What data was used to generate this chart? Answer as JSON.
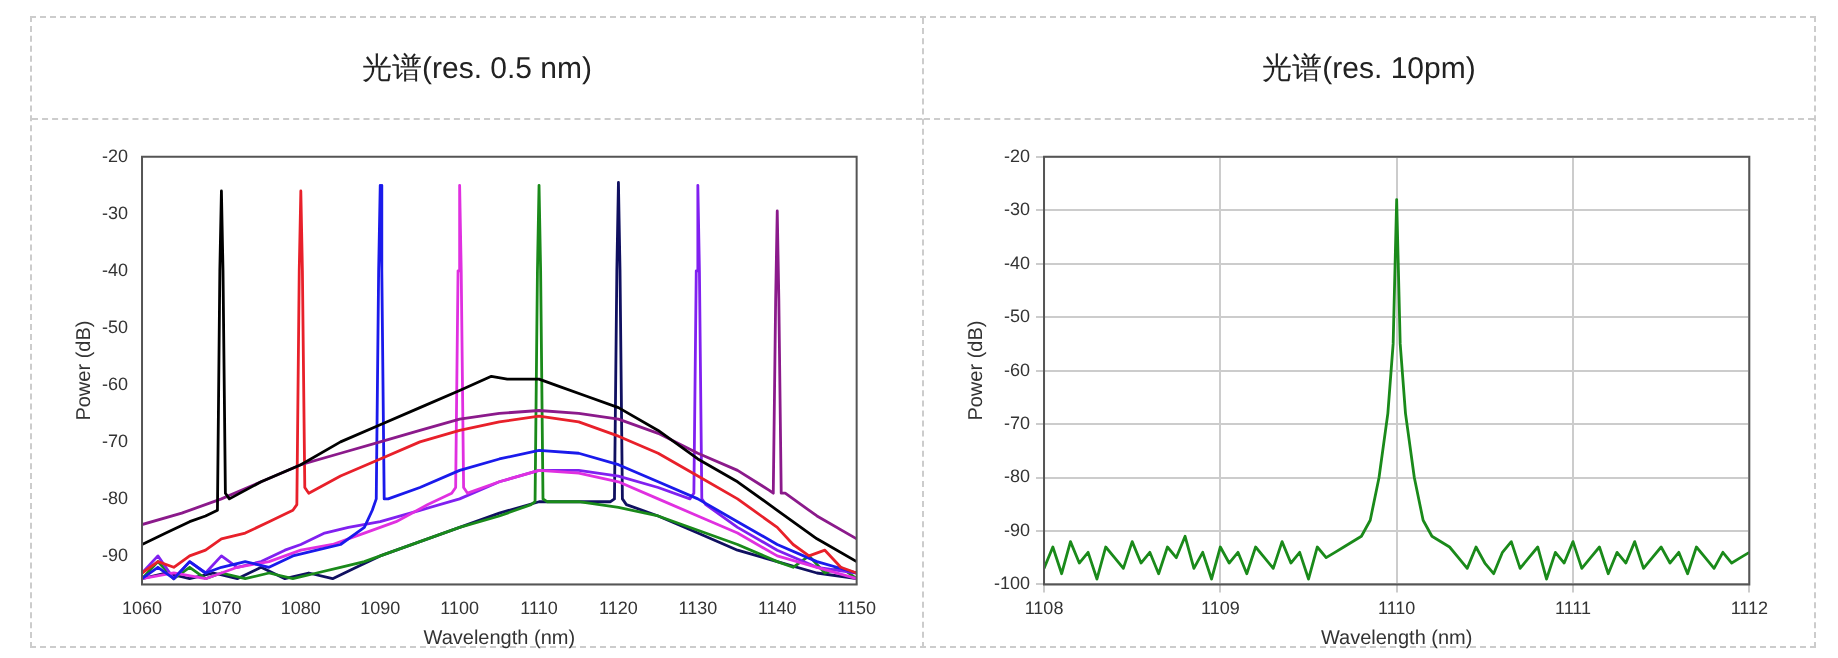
{
  "chart_data": [
    {
      "type": "line",
      "title": "光谱(res. 0.5 nm)",
      "xlabel": "Wavelength (nm)",
      "ylabel": "Power (dB)",
      "xlim": [
        1060,
        1150
      ],
      "ylim": [
        -95,
        -20
      ],
      "xticks": [
        1060,
        1070,
        1080,
        1090,
        1100,
        1110,
        1120,
        1130,
        1140,
        1150
      ],
      "yticks": [
        -90,
        -80,
        -70,
        -60,
        -50,
        -40,
        -30,
        -20
      ],
      "grid": false,
      "legend": false,
      "series": [
        {
          "color": "#000000",
          "x": [
            1060,
            1063,
            1066,
            1068,
            1069.5,
            1069.8,
            1070,
            1070.2,
            1070.5,
            1071,
            1075,
            1080,
            1085,
            1090,
            1095,
            1100,
            1104,
            1106,
            1110,
            1112,
            1116,
            1120,
            1125,
            1130,
            1135,
            1140,
            1145,
            1150
          ],
          "values": [
            -88,
            -86,
            -84,
            -83,
            -82,
            -40,
            -26,
            -40,
            -79,
            -80,
            -77,
            -74,
            -70,
            -67,
            -64,
            -61,
            -58.5,
            -59,
            -59,
            -60,
            -62,
            -64,
            -68,
            -73,
            -77,
            -82,
            -87,
            -91
          ]
        },
        {
          "color": "#8b1a8b",
          "x": [
            1060,
            1065,
            1070,
            1075,
            1080,
            1085,
            1090,
            1095,
            1100,
            1105,
            1110,
            1115,
            1120,
            1125,
            1130,
            1135,
            1139,
            1139.5,
            1139.8,
            1140,
            1140.2,
            1140.5,
            1141,
            1145,
            1150
          ],
          "values": [
            -84.5,
            -82.5,
            -80,
            -77,
            -74,
            -72,
            -70,
            -68,
            -66,
            -65,
            -64.5,
            -65,
            -66,
            -68.5,
            -72,
            -75,
            -78.5,
            -79,
            -45,
            -29.5,
            -45,
            -79,
            -79,
            -83,
            -87
          ]
        },
        {
          "color": "#e8202a",
          "x": [
            1060,
            1062,
            1064,
            1066,
            1068,
            1070,
            1073,
            1076,
            1079,
            1079.5,
            1079.8,
            1080,
            1080.2,
            1080.5,
            1081,
            1085,
            1090,
            1095,
            1100,
            1105,
            1110,
            1115,
            1120,
            1125,
            1130,
            1135,
            1140,
            1142,
            1144,
            1146,
            1148,
            1150
          ],
          "values": [
            -93,
            -91,
            -92,
            -90,
            -89,
            -87,
            -86,
            -84,
            -82,
            -81,
            -40,
            -26,
            -40,
            -78,
            -79,
            -76,
            -73,
            -70,
            -68,
            -66.5,
            -65.5,
            -66.5,
            -69,
            -72,
            -76,
            -80,
            -85,
            -88,
            -90,
            -89,
            -92,
            -93
          ]
        },
        {
          "color": "#1a1aeb",
          "x": [
            1060,
            1062,
            1064,
            1066,
            1068,
            1070,
            1073,
            1076,
            1079,
            1082,
            1085,
            1088,
            1089,
            1089.5,
            1089.8,
            1090,
            1090.2,
            1090.5,
            1091,
            1095,
            1100,
            1105,
            1110,
            1115,
            1120,
            1125,
            1130,
            1135,
            1140,
            1145,
            1150
          ],
          "values": [
            -94,
            -92,
            -94,
            -91,
            -93,
            -92,
            -91,
            -92,
            -90,
            -89,
            -88,
            -85,
            -82,
            -80,
            -40,
            -25,
            -40,
            -80,
            -80,
            -78,
            -75,
            -73,
            -71.5,
            -72,
            -74,
            -77,
            -80,
            -84,
            -88,
            -91,
            -93
          ]
        },
        {
          "color": "#e030e0",
          "x": [
            1060,
            1064,
            1068,
            1072,
            1076,
            1080,
            1084,
            1088,
            1092,
            1096,
            1099,
            1099.5,
            1099.8,
            1100,
            1100.2,
            1100.5,
            1101,
            1105,
            1110,
            1115,
            1120,
            1125,
            1130,
            1135,
            1140,
            1145,
            1150
          ],
          "values": [
            -94,
            -93,
            -94,
            -92,
            -91,
            -89,
            -88,
            -86,
            -84,
            -81,
            -79,
            -78,
            -40,
            -25,
            -40,
            -78,
            -79,
            -77,
            -75,
            -75.5,
            -77,
            -80,
            -83,
            -86,
            -90,
            -92,
            -94
          ]
        },
        {
          "color": "#8020f0",
          "x": [
            1060,
            1062,
            1064,
            1066,
            1068,
            1070,
            1072,
            1075,
            1078,
            1080,
            1083,
            1086,
            1090,
            1095,
            1100,
            1105,
            1110,
            1115,
            1120,
            1125,
            1129,
            1129.5,
            1129.8,
            1130,
            1130.2,
            1130.5,
            1131,
            1135,
            1140,
            1145,
            1150
          ],
          "values": [
            -93,
            -90,
            -94,
            -91,
            -93,
            -90,
            -92,
            -91,
            -89,
            -88,
            -86,
            -85,
            -84,
            -82,
            -80,
            -77,
            -75,
            -75,
            -76,
            -78,
            -80,
            -79,
            -40,
            -25,
            -40,
            -80,
            -81,
            -85,
            -89,
            -92,
            -93
          ]
        },
        {
          "color": "#1a8a1a",
          "x": [
            1060,
            1062,
            1064,
            1066,
            1068,
            1070,
            1073,
            1076,
            1079,
            1082,
            1085,
            1088,
            1090,
            1095,
            1100,
            1105,
            1109,
            1109.5,
            1109.8,
            1110,
            1110.2,
            1110.5,
            1111,
            1115,
            1120,
            1125,
            1130,
            1135,
            1140,
            1142,
            1144,
            1146,
            1148,
            1150
          ],
          "values": [
            -94,
            -91,
            -94,
            -92,
            -94,
            -93,
            -94,
            -93,
            -94,
            -93,
            -92,
            -91,
            -90,
            -87.5,
            -85,
            -83,
            -81,
            -80.5,
            -40,
            -25,
            -40,
            -80,
            -80.5,
            -80.5,
            -81.5,
            -83,
            -85.5,
            -88,
            -91,
            -92,
            -90,
            -93,
            -92,
            -94
          ]
        },
        {
          "color": "#101060",
          "x": [
            1060,
            1063,
            1066,
            1069,
            1072,
            1075,
            1078,
            1081,
            1084,
            1087,
            1090,
            1095,
            1100,
            1105,
            1110,
            1115,
            1119,
            1119.5,
            1119.8,
            1120,
            1120.2,
            1120.5,
            1121,
            1125,
            1130,
            1135,
            1140,
            1145,
            1150
          ],
          "values": [
            -94,
            -93,
            -94,
            -93,
            -94,
            -92,
            -94,
            -93,
            -94,
            -92,
            -90,
            -87.5,
            -85,
            -82.5,
            -80.5,
            -80.5,
            -80.5,
            -80,
            -40,
            -24.5,
            -40,
            -80,
            -81,
            -83,
            -86,
            -89,
            -91,
            -93,
            -94
          ]
        }
      ]
    },
    {
      "type": "line",
      "title": "光谱(res. 10pm)",
      "xlabel": "Wavelength (nm)",
      "ylabel": "Power (dB)",
      "xlim": [
        1108,
        1112
      ],
      "ylim": [
        -100,
        -20
      ],
      "xticks": [
        1108,
        1109,
        1110,
        1111,
        1112
      ],
      "yticks": [
        -100,
        -90,
        -80,
        -70,
        -60,
        -50,
        -40,
        -30,
        -20
      ],
      "grid": true,
      "legend": false,
      "series": [
        {
          "color": "#1a8a1a",
          "x": [
            1108,
            1108.05,
            1108.1,
            1108.15,
            1108.2,
            1108.25,
            1108.3,
            1108.35,
            1108.4,
            1108.45,
            1108.5,
            1108.55,
            1108.6,
            1108.65,
            1108.7,
            1108.75,
            1108.8,
            1108.85,
            1108.9,
            1108.95,
            1109,
            1109.05,
            1109.1,
            1109.15,
            1109.2,
            1109.25,
            1109.3,
            1109.35,
            1109.4,
            1109.45,
            1109.5,
            1109.55,
            1109.6,
            1109.65,
            1109.7,
            1109.8,
            1109.85,
            1109.9,
            1109.95,
            1109.98,
            1110,
            1110.02,
            1110.05,
            1110.1,
            1110.15,
            1110.2,
            1110.3,
            1110.35,
            1110.4,
            1110.45,
            1110.5,
            1110.55,
            1110.6,
            1110.65,
            1110.7,
            1110.75,
            1110.8,
            1110.85,
            1110.9,
            1110.95,
            1111,
            1111.05,
            1111.1,
            1111.15,
            1111.2,
            1111.25,
            1111.3,
            1111.35,
            1111.4,
            1111.45,
            1111.5,
            1111.55,
            1111.6,
            1111.65,
            1111.7,
            1111.75,
            1111.8,
            1111.85,
            1111.9,
            1111.95,
            1112
          ],
          "values": [
            -97,
            -93,
            -98,
            -92,
            -96,
            -94,
            -99,
            -93,
            -95,
            -97,
            -92,
            -96,
            -94,
            -98,
            -93,
            -95,
            -91,
            -97,
            -94,
            -99,
            -93,
            -96,
            -94,
            -98,
            -93,
            -95,
            -97,
            -92,
            -96,
            -94,
            -99,
            -93,
            -95,
            -94,
            -93,
            -91,
            -88,
            -80,
            -68,
            -55,
            -28,
            -55,
            -68,
            -80,
            -88,
            -91,
            -93,
            -95,
            -97,
            -93,
            -96,
            -98,
            -94,
            -92,
            -97,
            -95,
            -93,
            -99,
            -94,
            -96,
            -92,
            -97,
            -95,
            -93,
            -98,
            -94,
            -96,
            -92,
            -97,
            -95,
            -93,
            -96,
            -94,
            -98,
            -93,
            -95,
            -97,
            -94,
            -96,
            -95,
            -94
          ]
        }
      ]
    }
  ]
}
